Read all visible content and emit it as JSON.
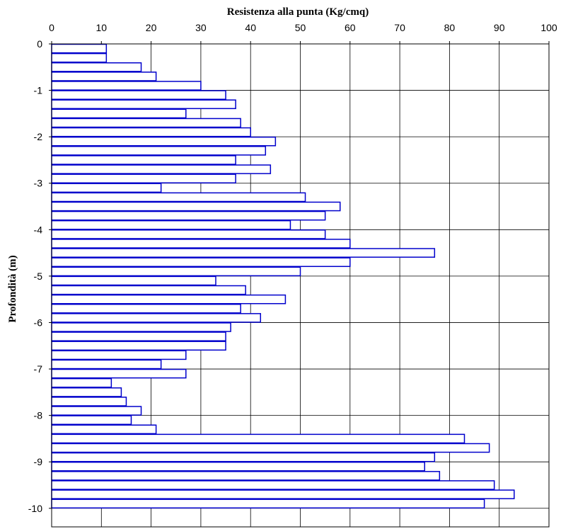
{
  "chart_data": {
    "type": "bar",
    "orientation": "horizontal",
    "title": "",
    "xlabel": "Resistenza alla punta (Kg/cmq)",
    "ylabel": "Profondità (m)",
    "xlim": [
      0,
      100
    ],
    "ylim": [
      -10.4,
      0
    ],
    "x_ticks": [
      0,
      10,
      20,
      30,
      40,
      50,
      60,
      70,
      80,
      90,
      100
    ],
    "y_ticks": [
      0,
      -1,
      -2,
      -3,
      -4,
      -5,
      -6,
      -7,
      -8,
      -9,
      -10
    ],
    "x_axis_position": "top",
    "grid": true,
    "legend": "none",
    "bar_color": "#0000cc",
    "bar_fill": "#ffffff",
    "depth_step_m": 0.2,
    "depths": [
      -0.2,
      -0.4,
      -0.6,
      -0.8,
      -1.0,
      -1.2,
      -1.4,
      -1.6,
      -1.8,
      -2.0,
      -2.2,
      -2.4,
      -2.6,
      -2.8,
      -3.0,
      -3.2,
      -3.4,
      -3.6,
      -3.8,
      -4.0,
      -4.2,
      -4.4,
      -4.6,
      -4.8,
      -5.0,
      -5.2,
      -5.4,
      -5.6,
      -5.8,
      -6.0,
      -6.2,
      -6.4,
      -6.6,
      -6.8,
      -7.0,
      -7.2,
      -7.4,
      -7.6,
      -7.8,
      -8.0,
      -8.2,
      -8.4,
      -8.6,
      -8.8,
      -9.0,
      -9.2,
      -9.4,
      -9.6,
      -9.8,
      -10.0
    ],
    "values": [
      11,
      11,
      18,
      21,
      30,
      35,
      37,
      27,
      38,
      40,
      45,
      43,
      37,
      44,
      37,
      22,
      51,
      58,
      55,
      48,
      55,
      60,
      77,
      60,
      50,
      33,
      39,
      47,
      38,
      42,
      36,
      35,
      35,
      27,
      22,
      27,
      12,
      14,
      15,
      18,
      16,
      21,
      83,
      88,
      77,
      75,
      78,
      89,
      93,
      87
    ]
  }
}
